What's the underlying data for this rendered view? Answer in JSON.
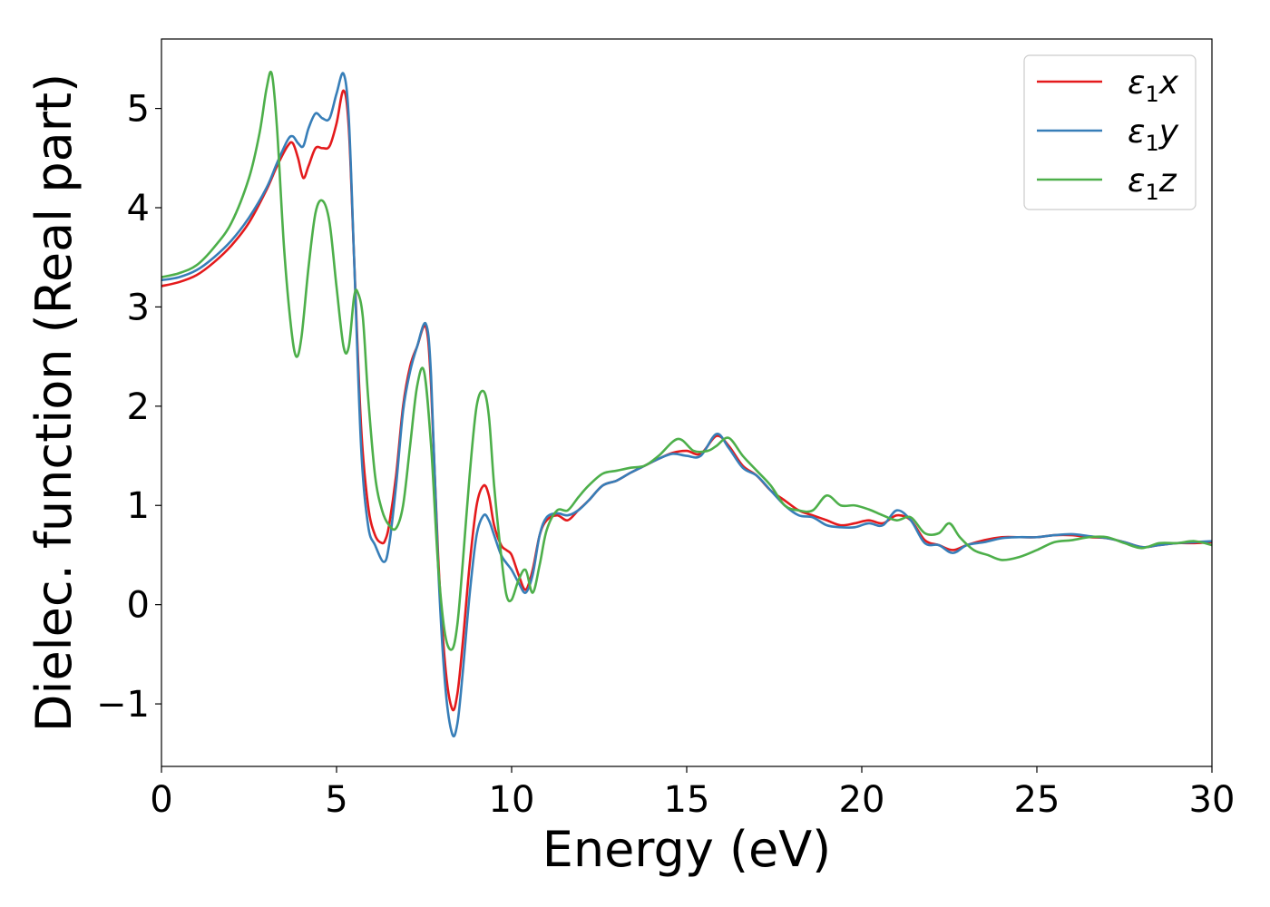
{
  "chart_data": {
    "type": "line",
    "title": "",
    "xlabel": "Energy (eV)",
    "ylabel": "Dielec. function (Real part)",
    "xlim": [
      0,
      30
    ],
    "ylim": [
      -1.63,
      5.7
    ],
    "xticks": [
      0,
      5,
      10,
      15,
      20,
      25,
      30
    ],
    "xtick_labels": [
      "0",
      "5",
      "10",
      "15",
      "20",
      "25",
      "30"
    ],
    "yticks": [
      -1,
      0,
      1,
      2,
      3,
      4,
      5
    ],
    "ytick_labels": [
      "−1",
      "0",
      "1",
      "2",
      "3",
      "4",
      "5"
    ],
    "grid": false,
    "legend_position": "top-right",
    "series": [
      {
        "name": "ε₁x",
        "legend_base": "ε",
        "legend_sub": "1",
        "legend_suffix": "x",
        "color": "#e41a1c",
        "x": [
          0,
          0.5,
          1,
          1.5,
          2,
          2.5,
          3,
          3.3,
          3.6,
          3.75,
          3.9,
          4.05,
          4.2,
          4.4,
          4.6,
          4.8,
          5.0,
          5.2,
          5.35,
          5.5,
          5.7,
          5.9,
          6.1,
          6.3,
          6.4,
          6.5,
          6.7,
          6.9,
          7.1,
          7.3,
          7.55,
          7.7,
          7.9,
          8.1,
          8.3,
          8.45,
          8.6,
          8.8,
          9.0,
          9.2,
          9.35,
          9.5,
          9.7,
          9.85,
          10.0,
          10.2,
          10.4,
          10.6,
          10.8,
          11.0,
          11.3,
          11.6,
          11.9,
          12.2,
          12.6,
          13.0,
          13.4,
          13.8,
          14.2,
          14.6,
          15.0,
          15.4,
          15.85,
          16.2,
          16.6,
          17.0,
          17.4,
          17.8,
          18.2,
          18.6,
          19.0,
          19.4,
          19.8,
          20.2,
          20.6,
          21.0,
          21.4,
          21.8,
          22.2,
          22.6,
          23.0,
          23.5,
          24.0,
          24.5,
          25.0,
          25.5,
          26.0,
          26.5,
          27.0,
          27.5,
          28.0,
          28.5,
          29.0,
          29.5,
          30.0
        ],
        "y": [
          3.21,
          3.25,
          3.32,
          3.45,
          3.62,
          3.85,
          4.18,
          4.42,
          4.62,
          4.65,
          4.5,
          4.3,
          4.42,
          4.6,
          4.6,
          4.62,
          4.85,
          5.18,
          4.8,
          3.5,
          1.8,
          1.0,
          0.7,
          0.62,
          0.66,
          0.8,
          1.3,
          2.0,
          2.4,
          2.6,
          2.8,
          2.2,
          0.5,
          -0.6,
          -1.05,
          -0.9,
          -0.4,
          0.4,
          1.0,
          1.2,
          1.1,
          0.8,
          0.6,
          0.55,
          0.5,
          0.3,
          0.15,
          0.35,
          0.7,
          0.85,
          0.9,
          0.85,
          0.95,
          1.05,
          1.2,
          1.25,
          1.33,
          1.4,
          1.47,
          1.53,
          1.55,
          1.52,
          1.7,
          1.6,
          1.4,
          1.3,
          1.15,
          1.05,
          0.95,
          0.9,
          0.85,
          0.8,
          0.82,
          0.85,
          0.82,
          0.9,
          0.85,
          0.65,
          0.6,
          0.55,
          0.6,
          0.65,
          0.68,
          0.68,
          0.68,
          0.7,
          0.7,
          0.68,
          0.67,
          0.63,
          0.58,
          0.6,
          0.62,
          0.62,
          0.63
        ]
      },
      {
        "name": "ε₁y",
        "legend_base": "ε",
        "legend_sub": "1",
        "legend_suffix": "y",
        "color": "#377eb8",
        "x": [
          0,
          0.5,
          1,
          1.5,
          2,
          2.5,
          3,
          3.3,
          3.6,
          3.75,
          3.9,
          4.05,
          4.2,
          4.4,
          4.6,
          4.8,
          5.0,
          5.2,
          5.35,
          5.5,
          5.7,
          5.9,
          6.1,
          6.35,
          6.5,
          6.7,
          6.9,
          7.1,
          7.3,
          7.55,
          7.7,
          7.9,
          8.1,
          8.3,
          8.45,
          8.6,
          8.8,
          9.0,
          9.2,
          9.35,
          9.5,
          9.7,
          9.85,
          10.0,
          10.2,
          10.4,
          10.6,
          10.8,
          11.0,
          11.3,
          11.6,
          11.9,
          12.2,
          12.6,
          13.0,
          13.4,
          13.8,
          14.2,
          14.6,
          15.0,
          15.4,
          15.85,
          16.2,
          16.6,
          17.0,
          17.4,
          17.8,
          18.2,
          18.6,
          19.0,
          19.4,
          19.8,
          20.2,
          20.6,
          21.0,
          21.4,
          21.8,
          22.2,
          22.6,
          23.0,
          23.5,
          24.0,
          24.5,
          25.0,
          25.5,
          26.0,
          26.5,
          27.0,
          27.5,
          28.0,
          28.5,
          29.0,
          29.5,
          30.0
        ],
        "y": [
          3.27,
          3.3,
          3.37,
          3.5,
          3.67,
          3.9,
          4.2,
          4.45,
          4.68,
          4.72,
          4.65,
          4.62,
          4.8,
          4.95,
          4.9,
          4.9,
          5.15,
          5.35,
          4.9,
          3.5,
          1.6,
          0.8,
          0.6,
          0.43,
          0.6,
          1.2,
          1.95,
          2.35,
          2.6,
          2.83,
          2.3,
          0.4,
          -0.8,
          -1.3,
          -1.2,
          -0.7,
          0.1,
          0.7,
          0.9,
          0.85,
          0.7,
          0.5,
          0.42,
          0.35,
          0.22,
          0.12,
          0.3,
          0.7,
          0.88,
          0.92,
          0.9,
          0.95,
          1.05,
          1.2,
          1.25,
          1.33,
          1.4,
          1.47,
          1.52,
          1.5,
          1.5,
          1.72,
          1.58,
          1.38,
          1.3,
          1.15,
          1.0,
          0.9,
          0.88,
          0.8,
          0.78,
          0.78,
          0.82,
          0.8,
          0.95,
          0.85,
          0.62,
          0.6,
          0.52,
          0.6,
          0.63,
          0.67,
          0.68,
          0.68,
          0.7,
          0.71,
          0.69,
          0.67,
          0.63,
          0.58,
          0.6,
          0.62,
          0.63,
          0.64
        ]
      },
      {
        "name": "ε₁z",
        "legend_base": "ε",
        "legend_sub": "1",
        "legend_suffix": "z",
        "color": "#4daf4a",
        "x": [
          0,
          0.5,
          1,
          1.5,
          2,
          2.5,
          2.8,
          3.0,
          3.15,
          3.3,
          3.5,
          3.7,
          3.85,
          4.0,
          4.2,
          4.4,
          4.6,
          4.8,
          5.0,
          5.2,
          5.35,
          5.5,
          5.6,
          5.75,
          5.9,
          6.1,
          6.3,
          6.5,
          6.7,
          6.9,
          7.1,
          7.3,
          7.5,
          7.7,
          7.9,
          8.1,
          8.3,
          8.45,
          8.6,
          8.8,
          9.0,
          9.2,
          9.35,
          9.5,
          9.7,
          9.85,
          10.0,
          10.2,
          10.4,
          10.6,
          10.8,
          11.0,
          11.3,
          11.6,
          11.9,
          12.2,
          12.6,
          13.0,
          13.4,
          13.8,
          14.2,
          14.75,
          15.2,
          15.6,
          15.85,
          16.2,
          16.6,
          17.0,
          17.4,
          17.8,
          18.2,
          18.6,
          19.0,
          19.4,
          19.8,
          20.2,
          20.6,
          21.0,
          21.4,
          21.8,
          22.2,
          22.5,
          22.8,
          23.2,
          23.6,
          24.0,
          24.5,
          25.0,
          25.5,
          26.0,
          26.5,
          27.0,
          27.5,
          28.0,
          28.5,
          29.0,
          29.5,
          30.0
        ],
        "y": [
          3.3,
          3.34,
          3.42,
          3.6,
          3.85,
          4.3,
          4.75,
          5.2,
          5.35,
          4.8,
          3.6,
          2.8,
          2.5,
          2.7,
          3.4,
          3.95,
          4.07,
          3.85,
          3.2,
          2.6,
          2.6,
          3.1,
          3.15,
          2.9,
          2.1,
          1.3,
          0.95,
          0.8,
          0.77,
          1.0,
          1.6,
          2.2,
          2.35,
          1.6,
          0.4,
          -0.3,
          -0.45,
          -0.2,
          0.4,
          1.3,
          2.0,
          2.15,
          1.9,
          1.2,
          0.5,
          0.1,
          0.05,
          0.25,
          0.35,
          0.12,
          0.4,
          0.75,
          0.95,
          0.95,
          1.08,
          1.2,
          1.32,
          1.35,
          1.38,
          1.4,
          1.5,
          1.67,
          1.55,
          1.55,
          1.6,
          1.68,
          1.5,
          1.35,
          1.2,
          1.0,
          0.95,
          0.95,
          1.1,
          1.0,
          1.0,
          0.96,
          0.9,
          0.85,
          0.88,
          0.72,
          0.72,
          0.82,
          0.68,
          0.55,
          0.5,
          0.45,
          0.48,
          0.55,
          0.63,
          0.65,
          0.68,
          0.68,
          0.62,
          0.57,
          0.62,
          0.62,
          0.64,
          0.6
        ]
      }
    ]
  }
}
